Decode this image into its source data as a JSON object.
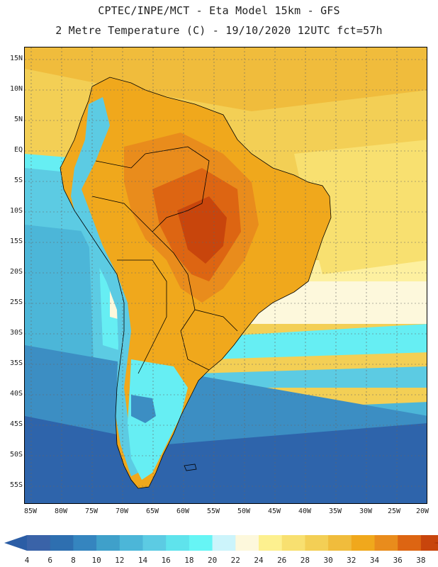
{
  "title_line1": "CPTEC/INPE/MCT -  Eta Model 15km - GFS",
  "title_line2": "2 Metre Temperature (C) - 19/10/2020 12UTC fct=57h",
  "lat_labels": [
    "15N",
    "10N",
    "5N",
    "EQ",
    "5S",
    "10S",
    "15S",
    "20S",
    "25S",
    "30S",
    "35S",
    "40S",
    "45S",
    "50S",
    "55S"
  ],
  "lon_labels": [
    "85W",
    "80W",
    "75W",
    "70W",
    "65W",
    "60W",
    "55W",
    "50W",
    "45W",
    "40W",
    "35W",
    "30W",
    "25W",
    "20W"
  ],
  "colorbar": {
    "labels": [
      "4",
      "6",
      "8",
      "10",
      "12",
      "14",
      "16",
      "18",
      "20",
      "22",
      "24",
      "26",
      "28",
      "30",
      "32",
      "34",
      "36",
      "38"
    ],
    "colors": [
      "#3a63a8",
      "#2e6fb0",
      "#3585bf",
      "#3fa0ca",
      "#4cb6d8",
      "#5ccbe3",
      "#5fe3ec",
      "#66f5f5",
      "#ccf4fb",
      "#fdf8dc",
      "#fdf08f",
      "#f8e070",
      "#f3cf55",
      "#f0bc3c",
      "#f0a81c",
      "#e98c1c",
      "#dd6512",
      "#c8450c",
      "#b03508"
    ],
    "low_arrow_color": "#2b5da5",
    "high_arrow_color": "#b03508"
  },
  "map_colors": {
    "ocean_cold": "#2e64ab",
    "ocean_cool": "#3c8ec3",
    "ocean_mild": "#4cb6d8",
    "ocean_teal": "#5ccbe3",
    "ocean_cyan": "#66eef3",
    "ocean_pale": "#ccf4fb",
    "ocean_cream": "#fdf8dc",
    "ocean_yellow": "#f8e070",
    "ocean_gold": "#f3cf55",
    "land_warm": "#f0a81c",
    "land_hot": "#e98c1c",
    "land_very_hot": "#dd6512",
    "land_extreme": "#c8450c",
    "andes_cool": "#5ccbe3",
    "andes_cold": "#3c8ec3"
  }
}
